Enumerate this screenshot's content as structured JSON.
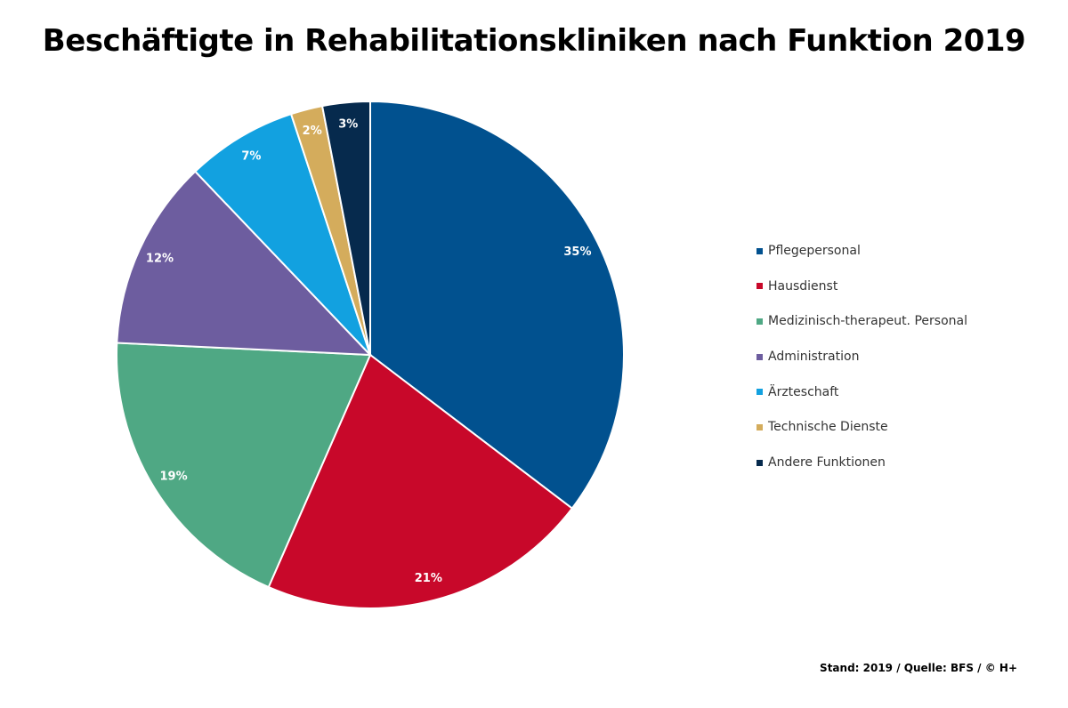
{
  "chart_data": {
    "type": "pie",
    "title": "Beschäftigte in Rehabilitationskliniken nach Funktion 2019",
    "slices": [
      {
        "name": "Pflegepersonal",
        "value": 35,
        "label": "35%",
        "color": "#01518f"
      },
      {
        "name": "Hausdienst",
        "value": 21,
        "label": "21%",
        "color": "#c8082a"
      },
      {
        "name": "Medizinisch-therapeut. Personal",
        "value": 19,
        "label": "19%",
        "color": "#4fa884"
      },
      {
        "name": "Administration",
        "value": 12,
        "label": "12%",
        "color": "#6d5d9f"
      },
      {
        "name": "Ärzteschaft",
        "value": 7,
        "label": "7%",
        "color": "#12a1e0"
      },
      {
        "name": "Technische Dienste",
        "value": 2,
        "label": "2%",
        "color": "#d4ac5c"
      },
      {
        "name": "Andere Funktionen",
        "value": 3,
        "label": "3%",
        "color": "#062a4d"
      }
    ],
    "legend_position": "right",
    "start_angle": "top",
    "direction": "clockwise"
  },
  "source_note": "Stand: 2019 / Quelle: BFS / © H+"
}
